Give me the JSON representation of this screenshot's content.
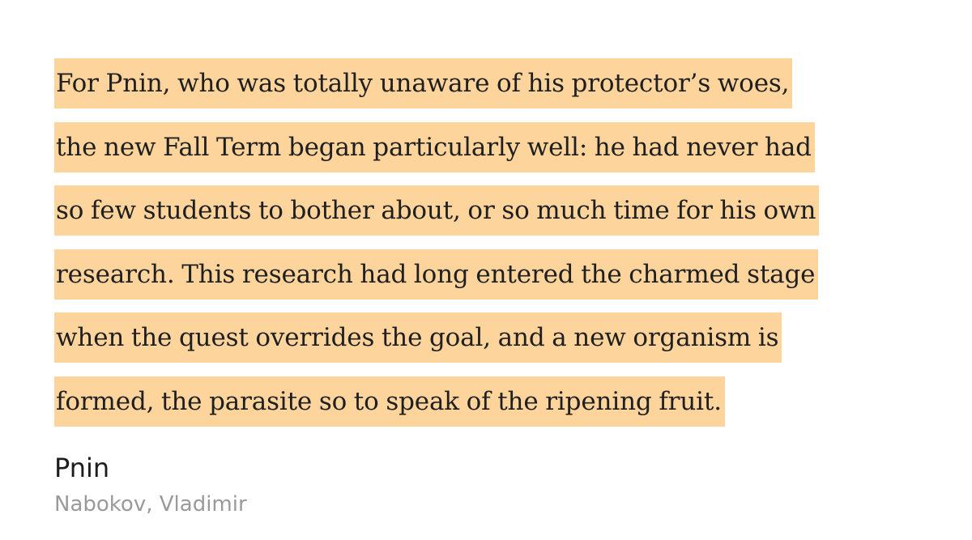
{
  "highlight": {
    "color": "#fdd59c",
    "lines": [
      "For Pnin, who was totally unaware of his protector’s woes,",
      "the new Fall Term began particularly well: he had never had",
      "so few students to bother about, or so much time for his own",
      "research. This research had long entered the charmed stage",
      "when the quest overrides the goal, and a new organism is",
      "formed, the parasite so to speak of the ripening fruit."
    ]
  },
  "book": {
    "title": "Pnin",
    "author": "Nabokov, Vladimir"
  }
}
